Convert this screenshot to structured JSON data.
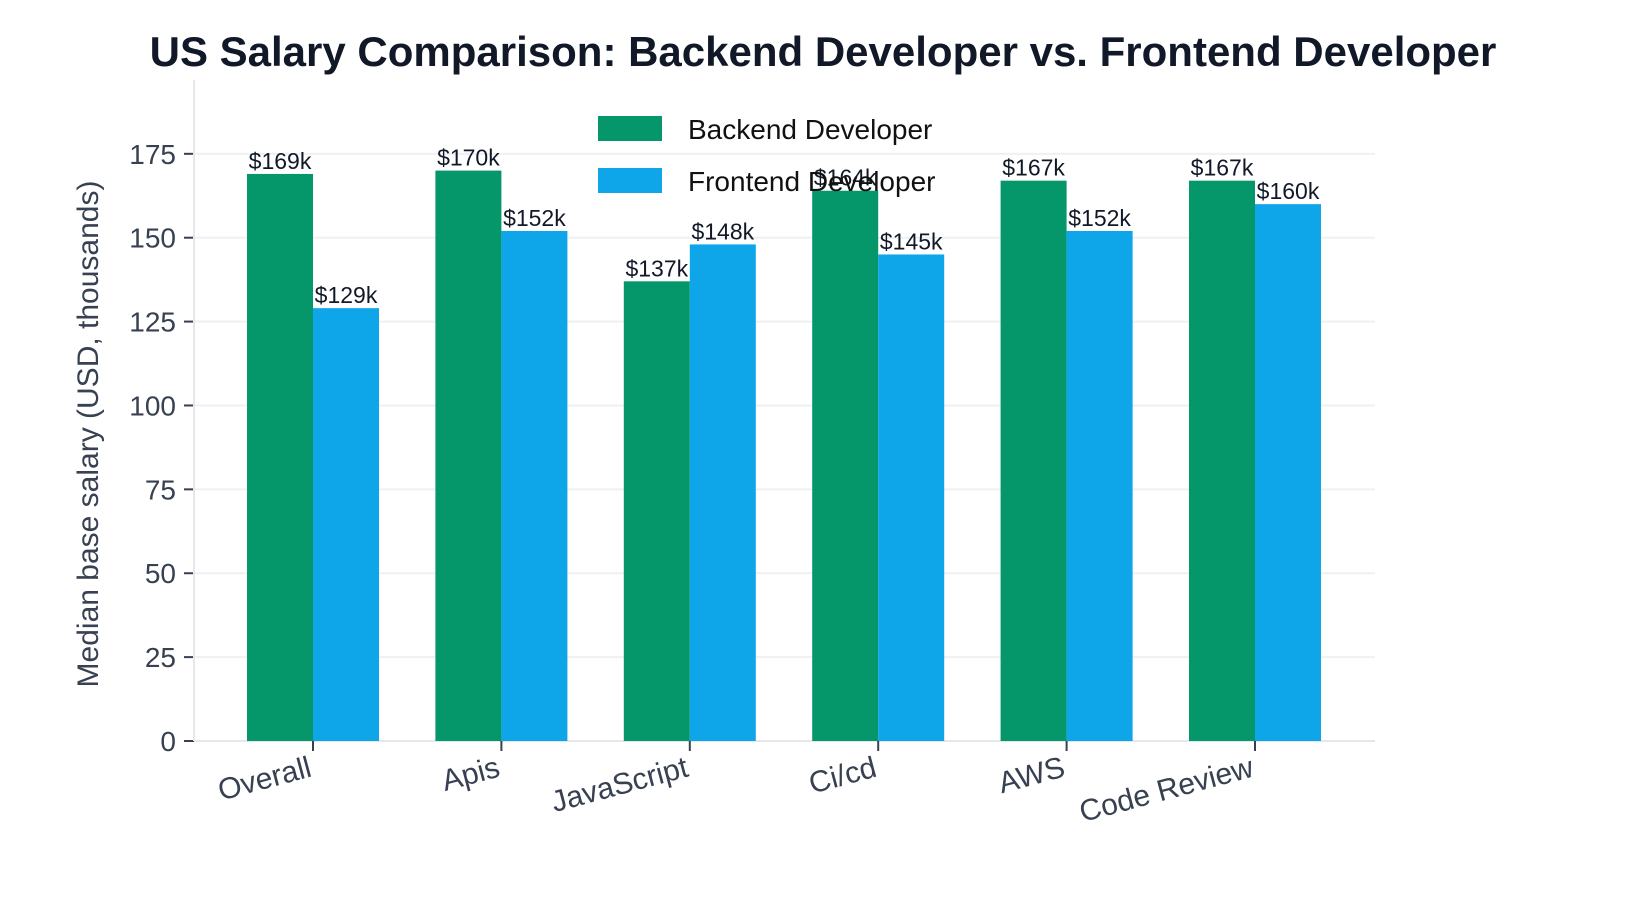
{
  "chart_data": {
    "type": "bar",
    "title": "US Salary Comparison: Backend Developer vs. Frontend Developer",
    "xlabel": "",
    "ylabel": "Median base salary (USD, thousands)",
    "categories": [
      "Overall",
      "Apis",
      "JavaScript",
      "Ci/cd",
      "AWS",
      "Code Review"
    ],
    "series": [
      {
        "name": "Backend Developer",
        "values": [
          169,
          170,
          137,
          164,
          167,
          167
        ],
        "labels": [
          "$169k",
          "$170k",
          "$137k",
          "$164k",
          "$167k",
          "$167k"
        ],
        "color": "#059669"
      },
      {
        "name": "Frontend Developer",
        "values": [
          129,
          152,
          148,
          145,
          152,
          160
        ],
        "labels": [
          "$129k",
          "$152k",
          "$148k",
          "$145k",
          "$152k",
          "$160k"
        ],
        "color": "#0ea5e9"
      }
    ],
    "ylim": [
      0,
      197
    ],
    "yticks": [
      0,
      25,
      50,
      75,
      100,
      125,
      150,
      175
    ],
    "grid": true,
    "legend": "top-center"
  }
}
